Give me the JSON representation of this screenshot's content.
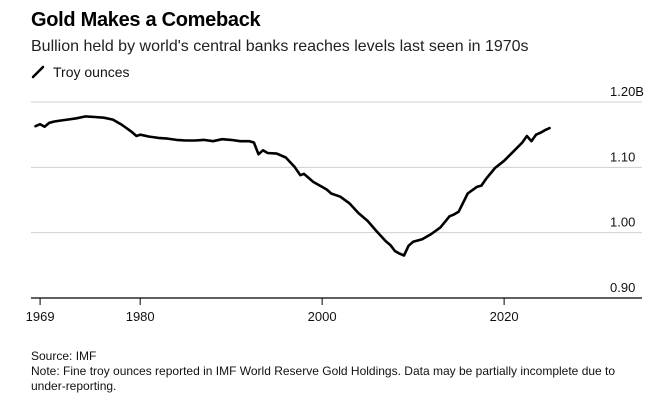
{
  "title": "Gold Makes a Comeback",
  "subtitle": "Bullion held by world's central banks reaches levels last seen in 1970s",
  "legend": {
    "label": "Troy ounces",
    "icon": "line-swatch-icon"
  },
  "source": "Source: IMF",
  "note": "Note: Fine troy ounces reported in IMF World Reserve Gold Holdings. Data may be partially incomplete due to under-reporting.",
  "chart_data": {
    "type": "line",
    "title": "Gold Makes a Comeback",
    "ylabel": "Troy ounces",
    "xlabel": "",
    "line_color": "#000000",
    "grid": true,
    "xlim": [
      1968,
      2029
    ],
    "ylim": [
      0.9,
      1.2
    ],
    "x_ticks": [
      1969,
      1980,
      2000,
      2020
    ],
    "x_tick_labels": [
      "1969",
      "1980",
      "2000",
      "2020"
    ],
    "y_ticks": [
      0.9,
      1.0,
      1.1,
      1.2
    ],
    "y_tick_labels": [
      "0.90",
      "1.00",
      "1.10",
      "1.20B"
    ],
    "series": [
      {
        "name": "Troy ounces",
        "x": [
          1968.5,
          1969,
          1969.5,
          1970,
          1970.5,
          1971,
          1972,
          1973,
          1974,
          1975,
          1976,
          1977,
          1978,
          1979,
          1979.6,
          1980,
          1981,
          1982,
          1983,
          1984,
          1985,
          1986,
          1987,
          1988,
          1989,
          1990,
          1991,
          1992,
          1992.5,
          1993,
          1993.5,
          1994,
          1995,
          1996,
          1997,
          1997.6,
          1998,
          1999,
          2000,
          2000.5,
          2001,
          2002,
          2003,
          2004,
          2005,
          2006,
          2007,
          2007.5,
          2008,
          2008.5,
          2009,
          2009.5,
          2010,
          2011,
          2012,
          2013,
          2014,
          2014.5,
          2015,
          2016,
          2017,
          2017.5,
          2018,
          2019,
          2020,
          2021,
          2022,
          2022.5,
          2023,
          2023.5,
          2024,
          2024.5,
          2025
        ],
        "values": [
          1.163,
          1.166,
          1.162,
          1.168,
          1.17,
          1.171,
          1.173,
          1.175,
          1.178,
          1.177,
          1.176,
          1.173,
          1.165,
          1.155,
          1.148,
          1.15,
          1.147,
          1.145,
          1.144,
          1.142,
          1.141,
          1.141,
          1.142,
          1.14,
          1.143,
          1.142,
          1.14,
          1.14,
          1.138,
          1.12,
          1.126,
          1.122,
          1.121,
          1.115,
          1.1,
          1.088,
          1.09,
          1.078,
          1.07,
          1.066,
          1.06,
          1.055,
          1.045,
          1.03,
          1.018,
          1.002,
          0.987,
          0.981,
          0.972,
          0.968,
          0.965,
          0.98,
          0.986,
          0.99,
          0.998,
          1.008,
          1.025,
          1.028,
          1.032,
          1.06,
          1.07,
          1.072,
          1.082,
          1.099,
          1.11,
          1.124,
          1.138,
          1.148,
          1.14,
          1.15,
          1.153,
          1.157,
          1.16
        ]
      }
    ]
  }
}
